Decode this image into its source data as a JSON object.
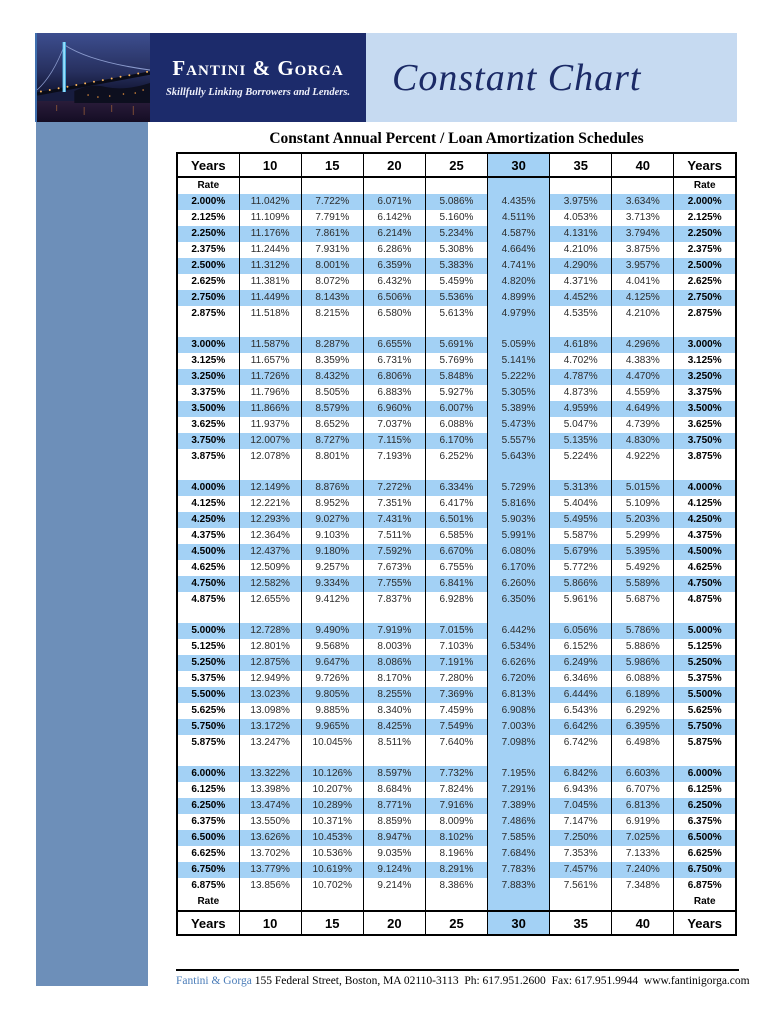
{
  "header": {
    "company": "Fantini & Gorga",
    "tagline": "Skillfully Linking Borrowers and Lenders.",
    "banner_title": "Constant Chart"
  },
  "table": {
    "title": "Constant Annual Percent / Loan Amortization Schedules",
    "years_label": "Years",
    "rate_label": "Rate",
    "year_columns": [
      "10",
      "15",
      "20",
      "25",
      "30",
      "35",
      "40"
    ],
    "highlight_column": "30",
    "groups": [
      {
        "rows": [
          {
            "rate": "2.000%",
            "values": [
              "11.042%",
              "7.722%",
              "6.071%",
              "5.086%",
              "4.435%",
              "3.975%",
              "3.634%"
            ]
          },
          {
            "rate": "2.125%",
            "values": [
              "11.109%",
              "7.791%",
              "6.142%",
              "5.160%",
              "4.511%",
              "4.053%",
              "3.713%"
            ]
          },
          {
            "rate": "2.250%",
            "values": [
              "11.176%",
              "7.861%",
              "6.214%",
              "5.234%",
              "4.587%",
              "4.131%",
              "3.794%"
            ]
          },
          {
            "rate": "2.375%",
            "values": [
              "11.244%",
              "7.931%",
              "6.286%",
              "5.308%",
              "4.664%",
              "4.210%",
              "3.875%"
            ]
          },
          {
            "rate": "2.500%",
            "values": [
              "11.312%",
              "8.001%",
              "6.359%",
              "5.383%",
              "4.741%",
              "4.290%",
              "3.957%"
            ]
          },
          {
            "rate": "2.625%",
            "values": [
              "11.381%",
              "8.072%",
              "6.432%",
              "5.459%",
              "4.820%",
              "4.371%",
              "4.041%"
            ]
          },
          {
            "rate": "2.750%",
            "values": [
              "11.449%",
              "8.143%",
              "6.506%",
              "5.536%",
              "4.899%",
              "4.452%",
              "4.125%"
            ]
          },
          {
            "rate": "2.875%",
            "values": [
              "11.518%",
              "8.215%",
              "6.580%",
              "5.613%",
              "4.979%",
              "4.535%",
              "4.210%"
            ]
          }
        ]
      },
      {
        "rows": [
          {
            "rate": "3.000%",
            "values": [
              "11.587%",
              "8.287%",
              "6.655%",
              "5.691%",
              "5.059%",
              "4.618%",
              "4.296%"
            ]
          },
          {
            "rate": "3.125%",
            "values": [
              "11.657%",
              "8.359%",
              "6.731%",
              "5.769%",
              "5.141%",
              "4.702%",
              "4.383%"
            ]
          },
          {
            "rate": "3.250%",
            "values": [
              "11.726%",
              "8.432%",
              "6.806%",
              "5.848%",
              "5.222%",
              "4.787%",
              "4.470%"
            ]
          },
          {
            "rate": "3.375%",
            "values": [
              "11.796%",
              "8.505%",
              "6.883%",
              "5.927%",
              "5.305%",
              "4.873%",
              "4.559%"
            ]
          },
          {
            "rate": "3.500%",
            "values": [
              "11.866%",
              "8.579%",
              "6.960%",
              "6.007%",
              "5.389%",
              "4.959%",
              "4.649%"
            ]
          },
          {
            "rate": "3.625%",
            "values": [
              "11.937%",
              "8.652%",
              "7.037%",
              "6.088%",
              "5.473%",
              "5.047%",
              "4.739%"
            ]
          },
          {
            "rate": "3.750%",
            "values": [
              "12.007%",
              "8.727%",
              "7.115%",
              "6.170%",
              "5.557%",
              "5.135%",
              "4.830%"
            ]
          },
          {
            "rate": "3.875%",
            "values": [
              "12.078%",
              "8.801%",
              "7.193%",
              "6.252%",
              "5.643%",
              "5.224%",
              "4.922%"
            ]
          }
        ]
      },
      {
        "rows": [
          {
            "rate": "4.000%",
            "values": [
              "12.149%",
              "8.876%",
              "7.272%",
              "6.334%",
              "5.729%",
              "5.313%",
              "5.015%"
            ]
          },
          {
            "rate": "4.125%",
            "values": [
              "12.221%",
              "8.952%",
              "7.351%",
              "6.417%",
              "5.816%",
              "5.404%",
              "5.109%"
            ]
          },
          {
            "rate": "4.250%",
            "values": [
              "12.293%",
              "9.027%",
              "7.431%",
              "6.501%",
              "5.903%",
              "5.495%",
              "5.203%"
            ]
          },
          {
            "rate": "4.375%",
            "values": [
              "12.364%",
              "9.103%",
              "7.511%",
              "6.585%",
              "5.991%",
              "5.587%",
              "5.299%"
            ]
          },
          {
            "rate": "4.500%",
            "values": [
              "12.437%",
              "9.180%",
              "7.592%",
              "6.670%",
              "6.080%",
              "5.679%",
              "5.395%"
            ]
          },
          {
            "rate": "4.625%",
            "values": [
              "12.509%",
              "9.257%",
              "7.673%",
              "6.755%",
              "6.170%",
              "5.772%",
              "5.492%"
            ]
          },
          {
            "rate": "4.750%",
            "values": [
              "12.582%",
              "9.334%",
              "7.755%",
              "6.841%",
              "6.260%",
              "5.866%",
              "5.589%"
            ]
          },
          {
            "rate": "4.875%",
            "values": [
              "12.655%",
              "9.412%",
              "7.837%",
              "6.928%",
              "6.350%",
              "5.961%",
              "5.687%"
            ]
          }
        ]
      },
      {
        "rows": [
          {
            "rate": "5.000%",
            "values": [
              "12.728%",
              "9.490%",
              "7.919%",
              "7.015%",
              "6.442%",
              "6.056%",
              "5.786%"
            ]
          },
          {
            "rate": "5.125%",
            "values": [
              "12.801%",
              "9.568%",
              "8.003%",
              "7.103%",
              "6.534%",
              "6.152%",
              "5.886%"
            ]
          },
          {
            "rate": "5.250%",
            "values": [
              "12.875%",
              "9.647%",
              "8.086%",
              "7.191%",
              "6.626%",
              "6.249%",
              "5.986%"
            ]
          },
          {
            "rate": "5.375%",
            "values": [
              "12.949%",
              "9.726%",
              "8.170%",
              "7.280%",
              "6.720%",
              "6.346%",
              "6.088%"
            ]
          },
          {
            "rate": "5.500%",
            "values": [
              "13.023%",
              "9.805%",
              "8.255%",
              "7.369%",
              "6.813%",
              "6.444%",
              "6.189%"
            ]
          },
          {
            "rate": "5.625%",
            "values": [
              "13.098%",
              "9.885%",
              "8.340%",
              "7.459%",
              "6.908%",
              "6.543%",
              "6.292%"
            ]
          },
          {
            "rate": "5.750%",
            "values": [
              "13.172%",
              "9.965%",
              "8.425%",
              "7.549%",
              "7.003%",
              "6.642%",
              "6.395%"
            ]
          },
          {
            "rate": "5.875%",
            "values": [
              "13.247%",
              "10.045%",
              "8.511%",
              "7.640%",
              "7.098%",
              "6.742%",
              "6.498%"
            ]
          }
        ]
      },
      {
        "rows": [
          {
            "rate": "6.000%",
            "values": [
              "13.322%",
              "10.126%",
              "8.597%",
              "7.732%",
              "7.195%",
              "6.842%",
              "6.603%"
            ]
          },
          {
            "rate": "6.125%",
            "values": [
              "13.398%",
              "10.207%",
              "8.684%",
              "7.824%",
              "7.291%",
              "6.943%",
              "6.707%"
            ]
          },
          {
            "rate": "6.250%",
            "values": [
              "13.474%",
              "10.289%",
              "8.771%",
              "7.916%",
              "7.389%",
              "7.045%",
              "6.813%"
            ]
          },
          {
            "rate": "6.375%",
            "values": [
              "13.550%",
              "10.371%",
              "8.859%",
              "8.009%",
              "7.486%",
              "7.147%",
              "6.919%"
            ]
          },
          {
            "rate": "6.500%",
            "values": [
              "13.626%",
              "10.453%",
              "8.947%",
              "8.102%",
              "7.585%",
              "7.250%",
              "7.025%"
            ]
          },
          {
            "rate": "6.625%",
            "values": [
              "13.702%",
              "10.536%",
              "9.035%",
              "8.196%",
              "7.684%",
              "7.353%",
              "7.133%"
            ]
          },
          {
            "rate": "6.750%",
            "values": [
              "13.779%",
              "10.619%",
              "9.124%",
              "8.291%",
              "7.783%",
              "7.457%",
              "7.240%"
            ]
          },
          {
            "rate": "6.875%",
            "values": [
              "13.856%",
              "10.702%",
              "9.214%",
              "8.386%",
              "7.883%",
              "7.561%",
              "7.348%"
            ]
          }
        ]
      }
    ]
  },
  "footer": {
    "company": "Fantini & Gorga",
    "address": "155 Federal Street, Boston, MA 02110-3113",
    "phone": "Ph: 617.951.2600",
    "fax": "Fax: 617.951.9944",
    "website": "www.fantinigorga.com"
  },
  "colors": {
    "highlight_blue": "#a3d1f5",
    "navy": "#1c2b6b",
    "banner_blue": "#c6daf1",
    "sidebar_blue": "#6d8fb9",
    "footer_link_blue": "#4a7cb8"
  }
}
